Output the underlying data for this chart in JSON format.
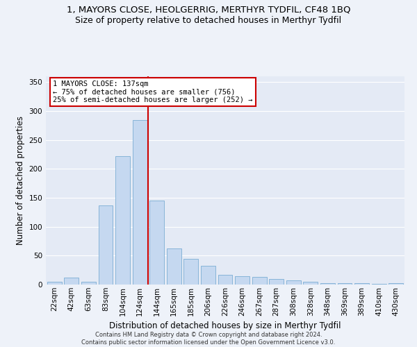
{
  "title1": "1, MAYORS CLOSE, HEOLGERRIG, MERTHYR TYDFIL, CF48 1BQ",
  "title2": "Size of property relative to detached houses in Merthyr Tydfil",
  "xlabel": "Distribution of detached houses by size in Merthyr Tydfil",
  "ylabel": "Number of detached properties",
  "categories": [
    "22sqm",
    "42sqm",
    "63sqm",
    "83sqm",
    "104sqm",
    "124sqm",
    "144sqm",
    "165sqm",
    "185sqm",
    "206sqm",
    "226sqm",
    "246sqm",
    "267sqm",
    "287sqm",
    "308sqm",
    "328sqm",
    "348sqm",
    "369sqm",
    "389sqm",
    "410sqm",
    "430sqm"
  ],
  "values": [
    5,
    12,
    5,
    137,
    222,
    285,
    145,
    63,
    45,
    33,
    17,
    15,
    13,
    10,
    7,
    5,
    3,
    3,
    3,
    1,
    2
  ],
  "bar_color": "#c5d8f0",
  "bar_edge_color": "#7badd4",
  "vline_color": "#cc0000",
  "annotation_text": "1 MAYORS CLOSE: 137sqm\n← 75% of detached houses are smaller (756)\n25% of semi-detached houses are larger (252) →",
  "annotation_box_color": "#ffffff",
  "annotation_box_edge": "#cc0000",
  "ylim": [
    0,
    360
  ],
  "yticks": [
    0,
    50,
    100,
    150,
    200,
    250,
    300,
    350
  ],
  "footnote": "Contains HM Land Registry data © Crown copyright and database right 2024.\nContains public sector information licensed under the Open Government Licence v3.0.",
  "background_color": "#eef2f9",
  "plot_bg_color": "#e4eaf5",
  "grid_color": "#ffffff",
  "title1_fontsize": 9.5,
  "title2_fontsize": 9,
  "tick_fontsize": 7.5,
  "label_fontsize": 8.5,
  "footnote_fontsize": 6,
  "annot_fontsize": 7.5
}
